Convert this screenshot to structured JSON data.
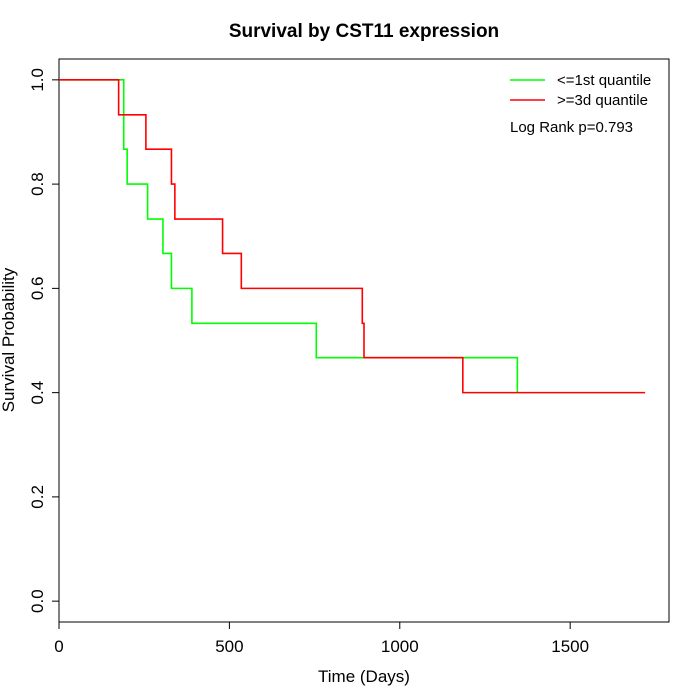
{
  "chart_data": {
    "type": "line",
    "title": "Survival by CST11 expression",
    "xlabel": "Time (Days)",
    "ylabel": "Survival Probability",
    "xlim": [
      0,
      1790
    ],
    "ylim": [
      -0.04,
      1.04
    ],
    "x_ticks": [
      0,
      500,
      1000,
      1500
    ],
    "x_tick_labels": [
      "0",
      "500",
      "1000",
      "1500"
    ],
    "y_ticks": [
      0.0,
      0.2,
      0.4,
      0.6,
      0.8,
      1.0
    ],
    "y_tick_labels": [
      "0.0",
      "0.2",
      "0.4",
      "0.6",
      "0.8",
      "1.0"
    ],
    "step": true,
    "grid": false,
    "legend_position": "top-right",
    "annotation": "Log Rank p=0.793",
    "series": [
      {
        "name": "<=1st quantile",
        "color": "#00ff00",
        "x": [
          0,
          180,
          190,
          200,
          260,
          305,
          330,
          390,
          755,
          1345
        ],
        "y": [
          1.0,
          1.0,
          0.867,
          0.8,
          0.733,
          0.667,
          0.6,
          0.533,
          0.467,
          0.4
        ]
      },
      {
        "name": ">=3d quantile",
        "color": "#ff0000",
        "x": [
          0,
          175,
          255,
          330,
          340,
          480,
          535,
          890,
          895,
          1185,
          1720
        ],
        "y": [
          1.0,
          0.933,
          0.867,
          0.8,
          0.733,
          0.667,
          0.6,
          0.533,
          0.467,
          0.4,
          0.4
        ]
      }
    ]
  }
}
